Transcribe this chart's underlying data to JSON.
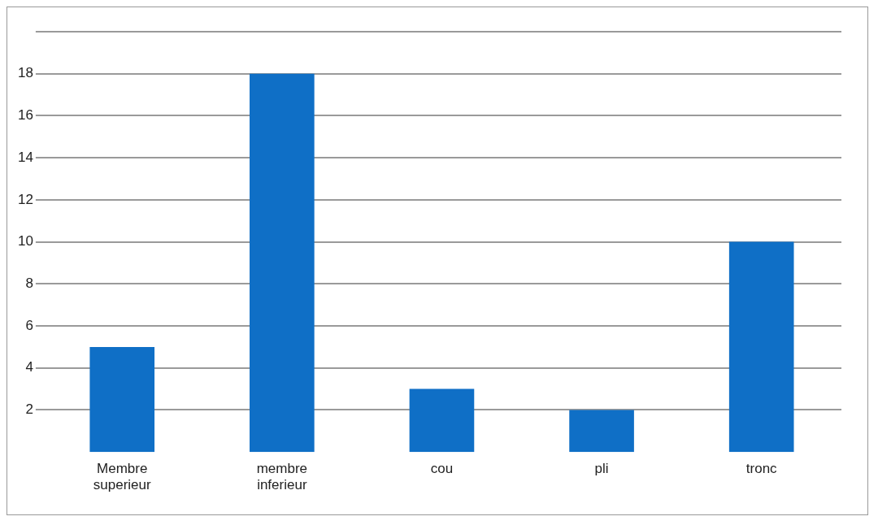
{
  "chart_data": {
    "type": "bar",
    "categories": [
      "Membre superieur",
      "membre inferieur",
      "cou",
      "pli",
      "tronc"
    ],
    "values": [
      5,
      18,
      3,
      2,
      10
    ],
    "color": "#0f6fc6",
    "ylim": [
      0,
      20
    ],
    "yticks": [
      2,
      4,
      6,
      8,
      10,
      12,
      14,
      16,
      18,
      {
        "value": 20,
        "label": null
      }
    ],
    "grid": "y",
    "legend": false
  }
}
